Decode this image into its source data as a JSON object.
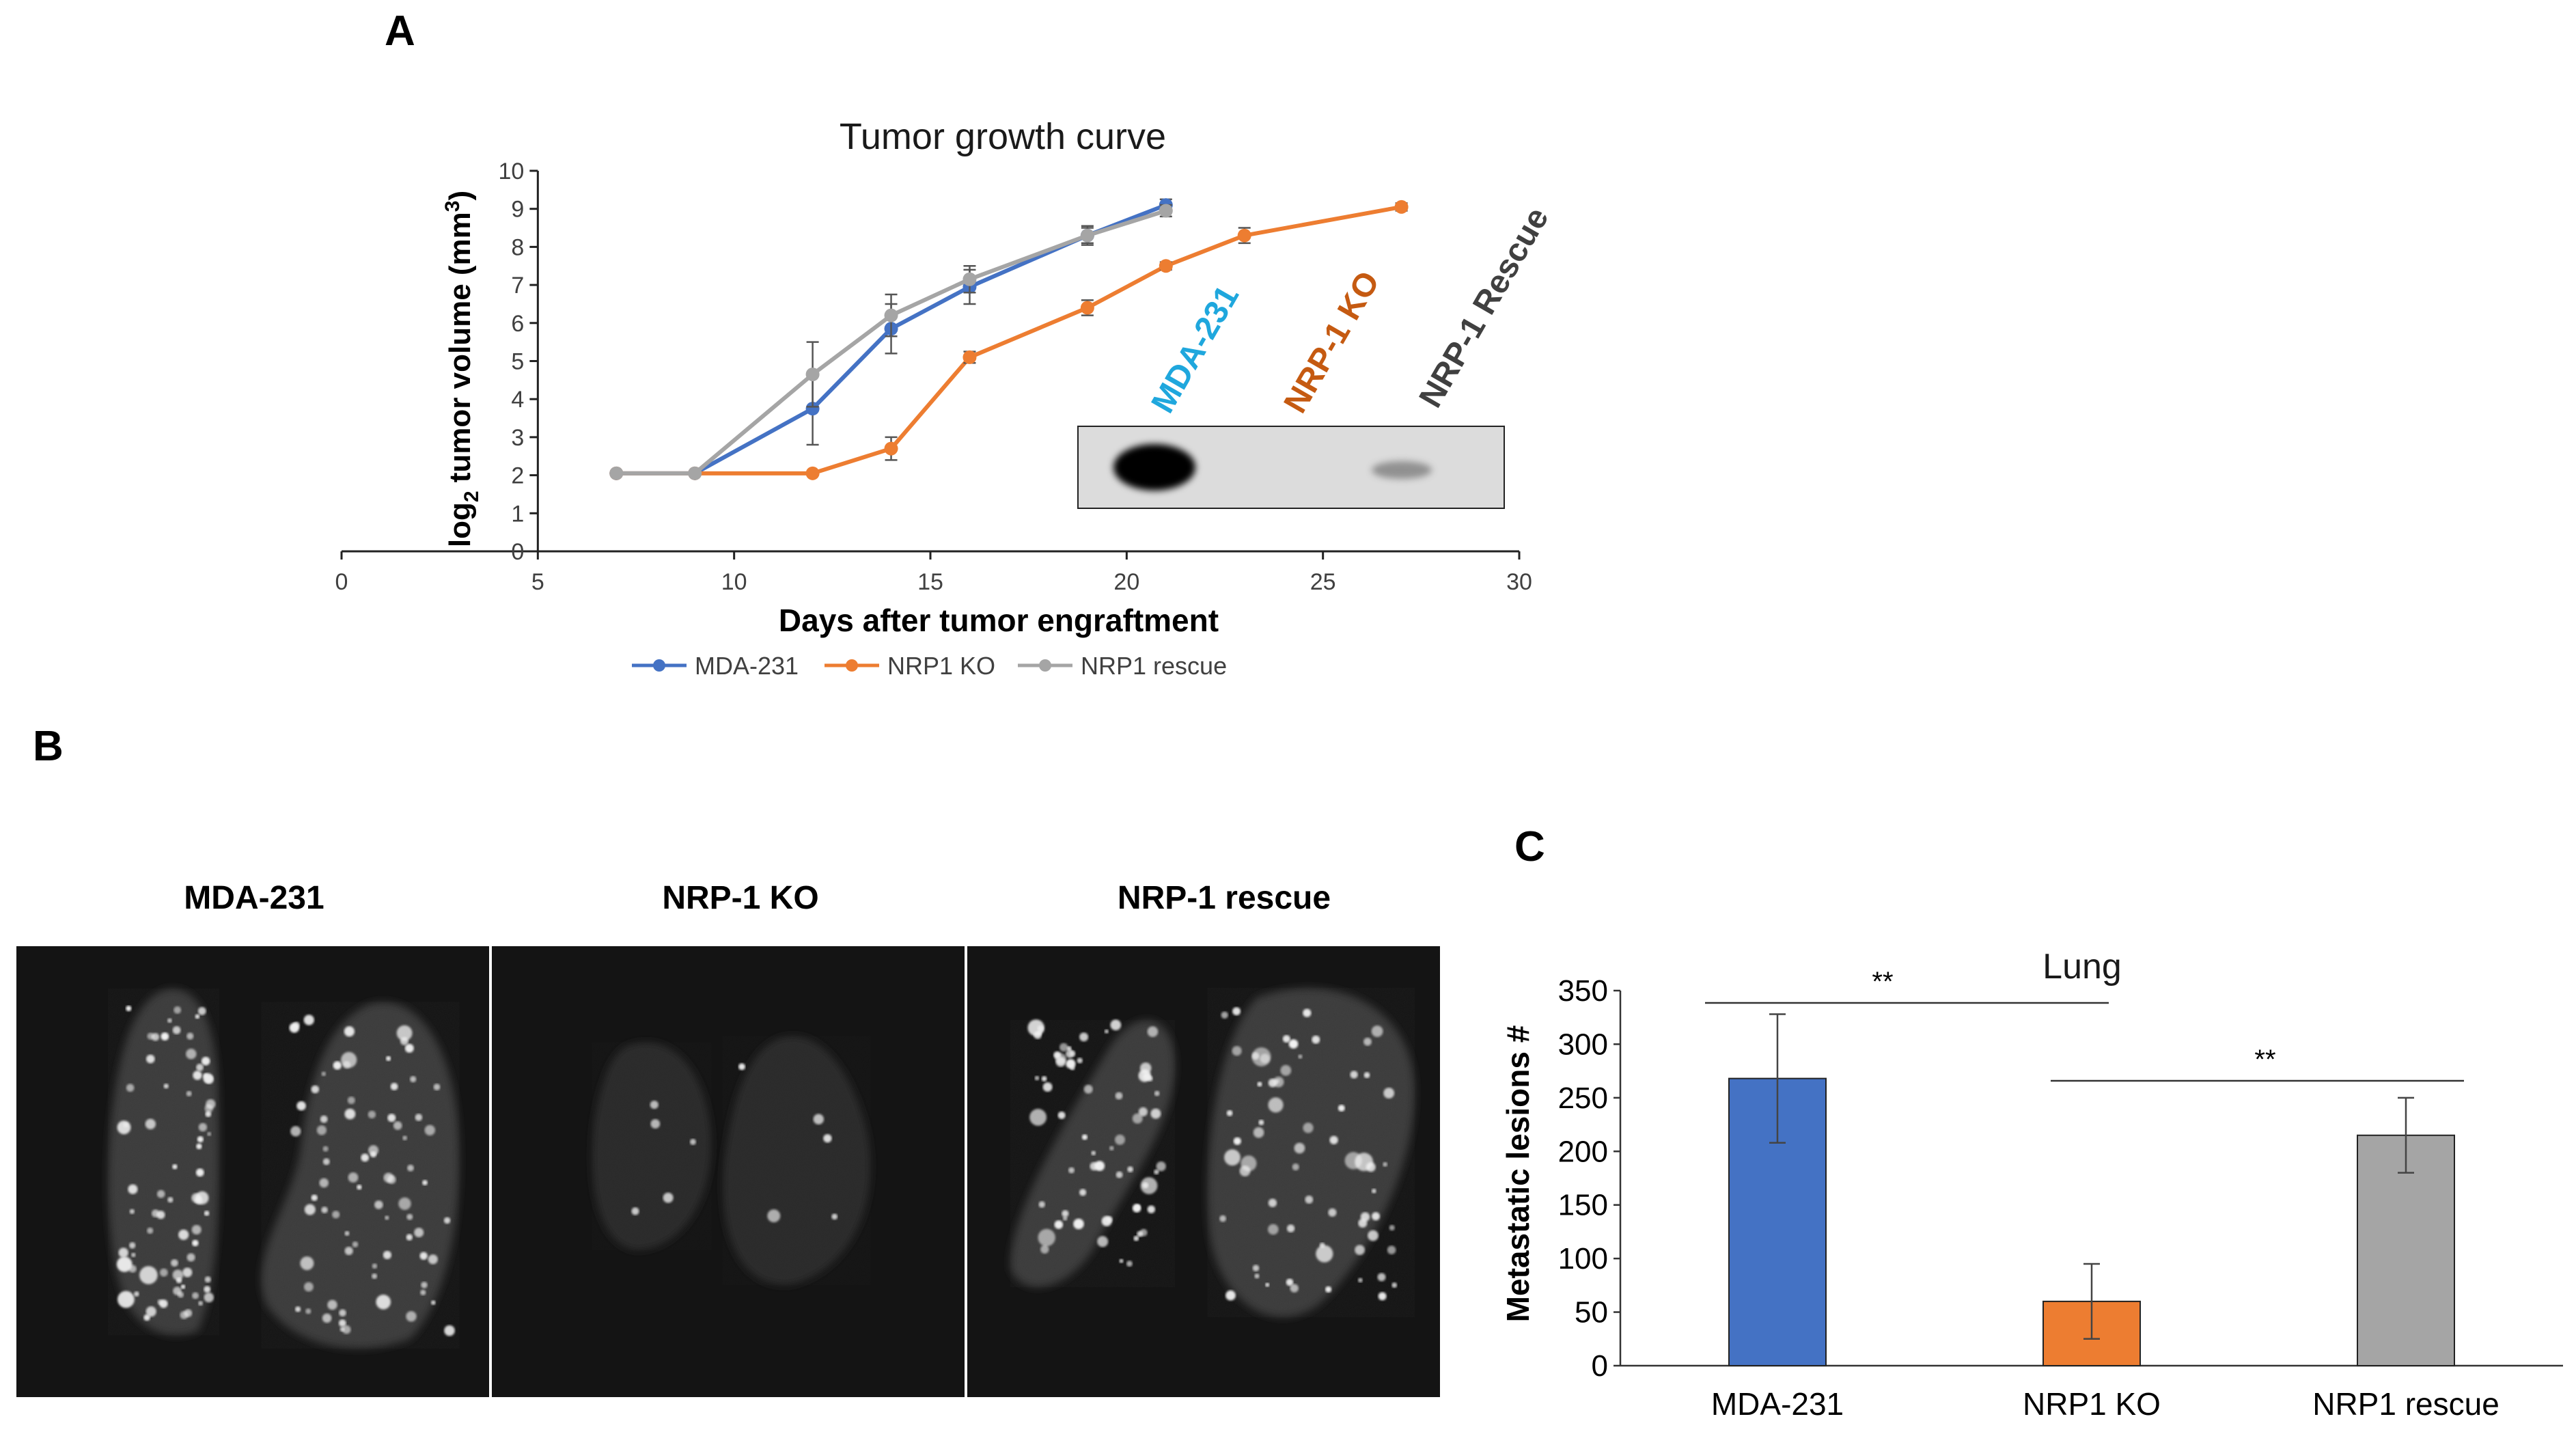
{
  "panels": {
    "A": "A",
    "B": "B",
    "C": "C"
  },
  "chart_data": [
    {
      "type": "line",
      "title": "Tumor growth curve",
      "xlabel": "Days after tumor engraftment",
      "ylabel": {
        "prefix": "log",
        "subscript": "2",
        "middle": " tumor volume (mm",
        "superscript": "3",
        "suffix": ")"
      },
      "xlim": [
        0,
        30
      ],
      "ylim": [
        0,
        10
      ],
      "xticks": [
        0,
        5,
        10,
        15,
        20,
        25,
        30
      ],
      "yticks": [
        0,
        1,
        2,
        3,
        4,
        5,
        6,
        7,
        8,
        9,
        10
      ],
      "grid": false,
      "legend_position": "bottom",
      "series": [
        {
          "name": "MDA-231",
          "color": "#4472C4",
          "x": [
            7,
            9,
            12,
            14,
            16,
            19,
            21
          ],
          "y": [
            2.05,
            2.05,
            3.75,
            5.85,
            6.95,
            8.3,
            9.1
          ],
          "err": [
            0.05,
            0.05,
            0.95,
            0.65,
            0.45,
            0.2,
            0.15
          ]
        },
        {
          "name": "NRP1 KO",
          "color": "#ED7D31",
          "x": [
            7,
            9,
            12,
            14,
            16,
            19,
            21,
            23,
            27
          ],
          "y": [
            2.05,
            2.05,
            2.05,
            2.7,
            5.1,
            6.4,
            7.5,
            8.3,
            9.05
          ],
          "err": [
            0.05,
            0.05,
            0.05,
            0.3,
            0.15,
            0.2,
            0.1,
            0.2,
            0.1
          ]
        },
        {
          "name": "NRP1 rescue",
          "color": "#A5A5A5",
          "x": [
            7,
            9,
            12,
            14,
            16,
            19,
            21
          ],
          "y": [
            2.05,
            2.05,
            4.65,
            6.2,
            7.15,
            8.3,
            8.95
          ],
          "err": [
            0.05,
            0.05,
            0.85,
            0.55,
            0.35,
            0.25,
            0.15
          ]
        }
      ]
    },
    {
      "type": "bar",
      "title": "Lung",
      "xlabel": "",
      "ylabel": "Metastatic lesions #",
      "categories": [
        "MDA-231",
        "NRP1 KO",
        "NRP1 rescue"
      ],
      "values": [
        268,
        60,
        215
      ],
      "err": [
        60,
        35,
        35
      ],
      "colors": [
        "#4472C4",
        "#ED7D31",
        "#A5A5A5"
      ],
      "ylim": [
        0,
        350
      ],
      "yticks": [
        0,
        50,
        100,
        150,
        200,
        250,
        300,
        350
      ],
      "grid": false,
      "significance": [
        {
          "from": "MDA-231",
          "to": "NRP1 KO",
          "label": "**"
        },
        {
          "from": "NRP1 KO",
          "to": "NRP1 rescue",
          "label": "**"
        }
      ]
    }
  ],
  "western_blot": {
    "lanes": [
      {
        "label": "MDA-231",
        "color": "#1FA7DD"
      },
      {
        "label": "NRP-1 KO",
        "color": "#C55A11"
      },
      {
        "label": "NRP-1\nRescue",
        "color": "#404040"
      }
    ]
  },
  "lung_images": {
    "labels": [
      "MDA-231",
      "NRP-1 KO",
      "NRP-1 rescue"
    ]
  }
}
